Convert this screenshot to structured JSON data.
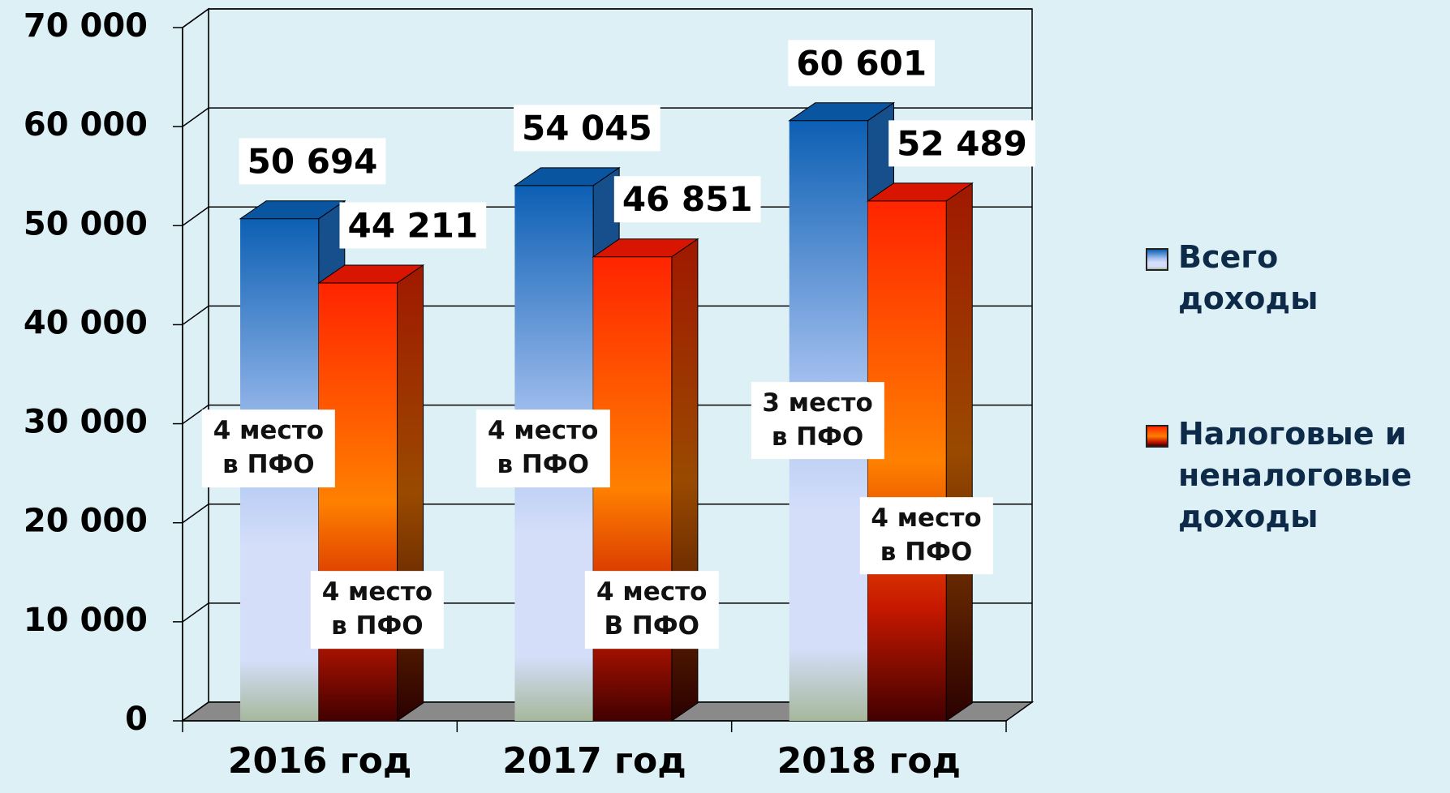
{
  "chart_data": {
    "type": "bar3d",
    "categories": [
      "2016 год",
      "2017 год",
      "2018 год"
    ],
    "series": [
      {
        "name": "Всего\nдоходы",
        "color": "#0c5fb4",
        "values": [
          50694,
          54045,
          60601
        ],
        "value_labels": [
          "50 694",
          "54 045",
          "60 601"
        ],
        "notes": [
          "4 место\nв ПФО",
          "4 место\nв ПФО",
          "3 место\nв ПФО"
        ]
      },
      {
        "name": "Налоговые и\nненалоговые\nдоходы",
        "color": "#ff2400",
        "values": [
          44211,
          46851,
          52489
        ],
        "value_labels": [
          "44 211",
          "46 851",
          "52 489"
        ],
        "notes": [
          "4 место\nв ПФО",
          "4 место\nВ ПФО",
          "4 место\nв ПФО"
        ]
      }
    ],
    "ylim": [
      0,
      70000
    ],
    "yticks": [
      0,
      {
        "value": 10000,
        "label": "10 000"
      },
      {
        "value": 20000,
        "label": "20 000"
      },
      {
        "value": 30000,
        "label": "30 000"
      },
      {
        "value": 40000,
        "label": "40 000"
      },
      {
        "value": 50000,
        "label": "50 000"
      },
      {
        "value": 60000,
        "label": "60 000"
      },
      {
        "value": 70000,
        "label": "70 000"
      }
    ],
    "grid": true,
    "legend": "right"
  }
}
